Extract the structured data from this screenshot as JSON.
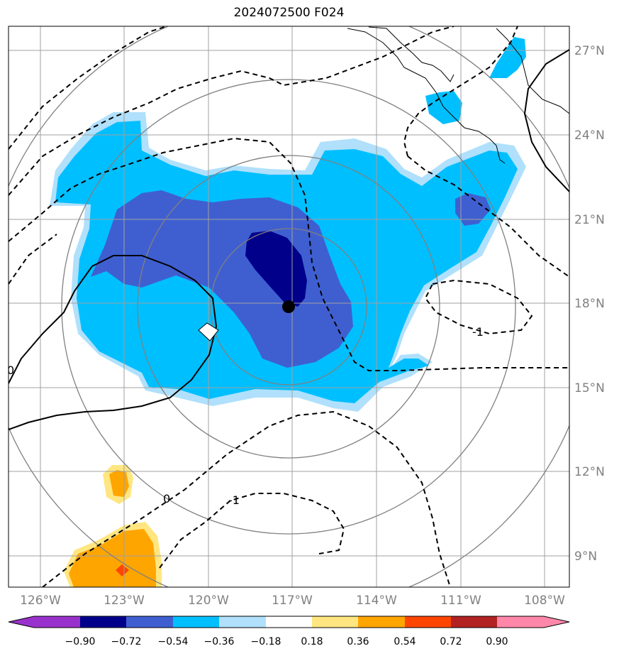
{
  "title": "2024072500 F024",
  "map": {
    "lon_labels": [
      "126°W",
      "123°W",
      "120°W",
      "117°W",
      "114°W",
      "111°W",
      "108°W"
    ],
    "lat_labels": [
      "27°N",
      "24°N",
      "21°N",
      "18°N",
      "15°N",
      "12°N",
      "9°N"
    ],
    "storm_center": {
      "lon": "117°W",
      "lat": "18°N"
    },
    "contour_labels": [
      "0",
      "-1",
      "0",
      "-1"
    ],
    "colors": {
      "shade_neg_090": "#00008b",
      "shade_neg_072": "#3f5fd0",
      "shade_neg_054": "#00bfff",
      "shade_neg_036": "#b0e0fb",
      "shade_pos_036": "#ffe680",
      "shade_pos_054": "#ffa500",
      "shade_pos_072": "#ff4500",
      "grid": "#a0a0a0",
      "range_rings": "#808080"
    }
  },
  "colorbar": {
    "ticks": [
      "−0.90",
      "−0.72",
      "−0.54",
      "−0.36",
      "−0.18",
      "0.18",
      "0.36",
      "0.54",
      "0.72",
      "0.90"
    ],
    "colors": [
      "#9932cc",
      "#00008b",
      "#3f5fd0",
      "#00bfff",
      "#b0e0fb",
      "#ffffff",
      "#ffe680",
      "#ffa500",
      "#ff4500",
      "#b22222",
      "#ff88aa",
      "#ff88aa"
    ]
  }
}
